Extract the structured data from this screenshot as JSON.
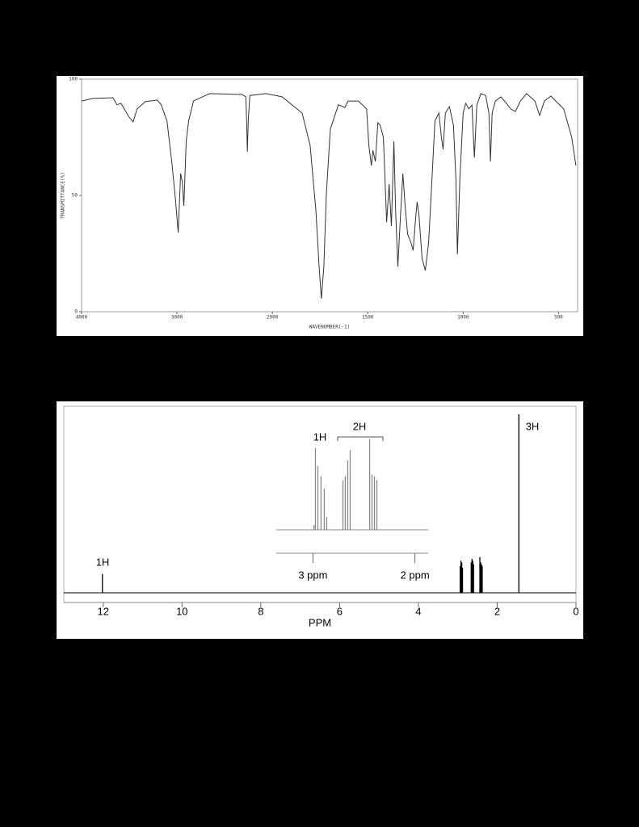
{
  "chart_data": [
    {
      "type": "line",
      "xscale": "piecewise",
      "xlabel": "WAVENUMBER(-1)",
      "ylabel": "TRANSMITTANCE(%)",
      "xlim": [
        4000,
        400
      ],
      "xticks": [
        4000,
        3000,
        2000,
        1500,
        1000,
        500
      ],
      "ylim": [
        0,
        100
      ],
      "yticks": [
        0,
        50,
        100
      ],
      "color": "#333333",
      "x": [
        4000,
        3882,
        3671,
        3629,
        3587,
        3502,
        3460,
        3418,
        3333,
        3207,
        3165,
        3105,
        3055,
        3013,
        2987,
        2962,
        2945,
        2928,
        2903,
        2878,
        2827,
        2658,
        2321,
        2278,
        2270,
        2262,
        2253,
        2236,
        2068,
        1949,
        1844,
        1802,
        1772,
        1755,
        1743,
        1730,
        1717,
        1696,
        1654,
        1620,
        1603,
        1549,
        1506,
        1494,
        1481,
        1473,
        1460,
        1447,
        1435,
        1418,
        1401,
        1388,
        1376,
        1363,
        1354,
        1342,
        1329,
        1316,
        1304,
        1291,
        1274,
        1262,
        1249,
        1241,
        1232,
        1215,
        1198,
        1181,
        1165,
        1148,
        1127,
        1114,
        1105,
        1093,
        1072,
        1051,
        1038,
        1030,
        1017,
        1000,
        987,
        970,
        954,
        941,
        928,
        907,
        882,
        865,
        857,
        848,
        831,
        802,
        776,
        751,
        726,
        700,
        667,
        624,
        599,
        574,
        540,
        473,
        431,
        409
      ],
      "values": [
        90.6,
        91.7,
        92,
        89,
        89.6,
        83.7,
        81.6,
        87.2,
        90.3,
        91,
        89,
        82,
        64.6,
        47.2,
        34,
        59.4,
        55.9,
        45.5,
        73.3,
        82,
        90.6,
        93.8,
        93.4,
        92.4,
        82,
        68.8,
        82,
        93,
        93.8,
        92.4,
        85.4,
        71.5,
        43.7,
        19.4,
        5.6,
        19.4,
        50.7,
        78.5,
        89,
        87.8,
        90.6,
        90.6,
        87.2,
        71.5,
        62.8,
        69.4,
        64.6,
        81.3,
        80.2,
        75,
        38.5,
        54.9,
        36.8,
        73.3,
        43.8,
        19.4,
        40.3,
        59.4,
        45.5,
        33.3,
        29.9,
        26.4,
        40.3,
        47.2,
        42,
        22.9,
        17.7,
        29.9,
        54.2,
        82,
        85.4,
        75,
        69.8,
        85.4,
        88.2,
        80.2,
        57.6,
        24.7,
        57.6,
        85.4,
        89.6,
        87.2,
        88.9,
        66.3,
        88.9,
        93.8,
        93,
        85.4,
        64.6,
        85.4,
        90.6,
        92.4,
        89.9,
        87.2,
        86.1,
        90.6,
        93.8,
        90.6,
        84.4,
        90.6,
        92.7,
        87.2,
        75,
        62.8
      ]
    },
    {
      "type": "stick",
      "xlabel": "PPM",
      "xlim": [
        13,
        0
      ],
      "xticks": [
        12,
        10,
        8,
        6,
        4,
        2,
        0
      ],
      "ylim": [
        0,
        100
      ],
      "color": "#000000",
      "annotations": [
        "1H",
        "3H"
      ],
      "x": [
        12.02,
        2.94,
        2.92,
        2.9,
        2.88,
        2.66,
        2.64,
        2.62,
        2.6,
        2.44,
        2.42,
        2.4,
        2.38,
        1.45
      ],
      "values": [
        10.5,
        15,
        18,
        17,
        14,
        17,
        19,
        18,
        16,
        20,
        17,
        16,
        15,
        100
      ]
    },
    {
      "type": "stick",
      "xlim": [
        3.36,
        1.87
      ],
      "xticks": [
        {
          "value": 3,
          "label": "3 ppm"
        },
        {
          "value": 2,
          "label": "2 ppm"
        }
      ],
      "ylim": [
        0,
        100
      ],
      "color": "#888888",
      "annotations": [
        "1H",
        "2H"
      ],
      "x": [
        2.99,
        2.976,
        2.952,
        2.921,
        2.889,
        2.865,
        2.706,
        2.683,
        2.659,
        2.635,
        2.444,
        2.421,
        2.397,
        2.373
      ],
      "values": [
        5,
        87,
        68,
        57,
        44,
        14,
        53,
        57,
        74,
        85,
        97,
        59,
        57,
        53
      ]
    }
  ]
}
